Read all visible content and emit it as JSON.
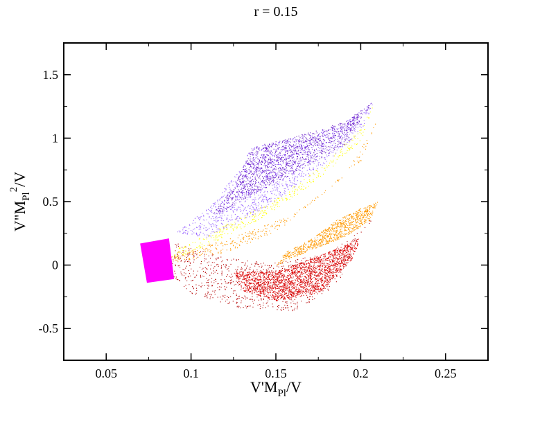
{
  "chart_data": {
    "type": "scatter",
    "title": "r = 0.15",
    "xlabel": {
      "base": "V'M",
      "sub": "Pl",
      "tail": "/V"
    },
    "ylabel": {
      "base": "V\"M",
      "sub": "Pl",
      "sup": "2",
      "tail": "/V"
    },
    "xlim": [
      0.025,
      0.275
    ],
    "ylim": [
      -0.75,
      1.75
    ],
    "xticks": [
      0.05,
      0.1,
      0.15,
      0.2,
      0.25
    ],
    "xtick_labels": [
      "0.05",
      "0.1",
      "0.15",
      "0.2",
      "0.25"
    ],
    "yticks": [
      -0.5,
      0,
      0.5,
      1,
      1.5
    ],
    "ytick_labels": [
      "-0.5",
      "0",
      "0.5",
      "1",
      "1.5"
    ],
    "grid": false,
    "legend": "none",
    "series": [
      {
        "color": "#b30000",
        "kind": "scatter-region",
        "outline": [
          [
            0.09,
            0.18
          ],
          [
            0.12,
            0.06
          ],
          [
            0.15,
            0.02
          ],
          [
            0.18,
            0.09
          ],
          [
            0.205,
            0.32
          ],
          [
            0.21,
            0.5
          ],
          [
            0.2,
            0.25
          ],
          [
            0.185,
            -0.18
          ],
          [
            0.16,
            -0.36
          ],
          [
            0.13,
            -0.34
          ],
          [
            0.1,
            -0.22
          ],
          [
            0.088,
            -0.08
          ]
        ],
        "density": 900
      },
      {
        "color": "#dd0000",
        "kind": "scatter-region",
        "outline": [
          [
            0.125,
            -0.05
          ],
          [
            0.15,
            -0.05
          ],
          [
            0.18,
            0.1
          ],
          [
            0.2,
            0.22
          ],
          [
            0.195,
            0.05
          ],
          [
            0.175,
            -0.22
          ],
          [
            0.15,
            -0.28
          ],
          [
            0.13,
            -0.2
          ]
        ],
        "density": 2000
      },
      {
        "color": "#ff9900",
        "kind": "scatter-region",
        "outline": [
          [
            0.15,
            0.0
          ],
          [
            0.17,
            0.12
          ],
          [
            0.19,
            0.22
          ],
          [
            0.205,
            0.35
          ],
          [
            0.21,
            0.5
          ],
          [
            0.2,
            0.45
          ],
          [
            0.185,
            0.35
          ],
          [
            0.17,
            0.2
          ],
          [
            0.155,
            0.1
          ]
        ],
        "density": 900
      },
      {
        "color": "#ff9900",
        "kind": "scatter-region",
        "outline": [
          [
            0.085,
            0.08
          ],
          [
            0.12,
            0.2
          ],
          [
            0.16,
            0.4
          ],
          [
            0.2,
            0.82
          ],
          [
            0.21,
            1.15
          ],
          [
            0.19,
            0.7
          ],
          [
            0.15,
            0.26
          ],
          [
            0.12,
            0.1
          ],
          [
            0.09,
            0.02
          ]
        ],
        "density": 2200
      },
      {
        "color": "#9966ff",
        "kind": "scatter-region",
        "outline": [
          [
            0.09,
            0.25
          ],
          [
            0.11,
            0.45
          ],
          [
            0.13,
            0.78
          ],
          [
            0.135,
            0.93
          ],
          [
            0.16,
            1.0
          ],
          [
            0.19,
            1.12
          ],
          [
            0.208,
            1.3
          ],
          [
            0.2,
            1.05
          ],
          [
            0.17,
            0.7
          ],
          [
            0.14,
            0.42
          ],
          [
            0.11,
            0.22
          ]
        ],
        "density": 1400
      },
      {
        "color": "#6a1fc8",
        "kind": "scatter-region",
        "outline": [
          [
            0.112,
            0.4
          ],
          [
            0.125,
            0.62
          ],
          [
            0.132,
            0.82
          ],
          [
            0.136,
            0.93
          ],
          [
            0.16,
            1.01
          ],
          [
            0.19,
            1.13
          ],
          [
            0.208,
            1.3
          ],
          [
            0.19,
            0.95
          ],
          [
            0.16,
            0.72
          ],
          [
            0.135,
            0.55
          ],
          [
            0.118,
            0.42
          ]
        ],
        "density": 9000
      },
      {
        "color": "#ffff00",
        "kind": "scatter-region",
        "outline": [
          [
            0.09,
            0.12
          ],
          [
            0.12,
            0.32
          ],
          [
            0.15,
            0.52
          ],
          [
            0.18,
            0.82
          ],
          [
            0.2,
            1.08
          ],
          [
            0.208,
            1.28
          ],
          [
            0.2,
            0.98
          ],
          [
            0.17,
            0.62
          ],
          [
            0.14,
            0.36
          ],
          [
            0.11,
            0.16
          ],
          [
            0.09,
            0.05
          ]
        ],
        "density": 9000
      },
      {
        "color": "#ff00ff",
        "kind": "filled-region",
        "outline": [
          [
            0.07,
            0.17
          ],
          [
            0.087,
            0.21
          ],
          [
            0.09,
            -0.11
          ],
          [
            0.074,
            -0.14
          ]
        ]
      }
    ]
  }
}
